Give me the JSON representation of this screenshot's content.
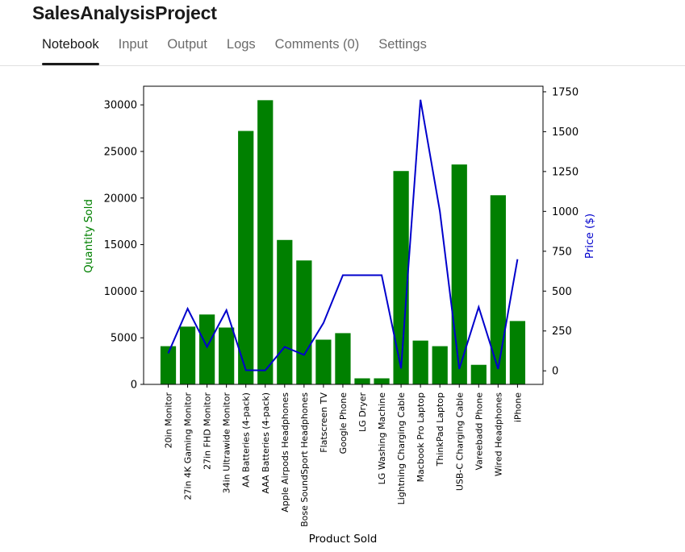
{
  "header": {
    "title": "SalesAnalysisProject",
    "tabs": [
      {
        "label": "Notebook",
        "active": true
      },
      {
        "label": "Input",
        "active": false
      },
      {
        "label": "Output",
        "active": false
      },
      {
        "label": "Logs",
        "active": false
      },
      {
        "label": "Comments (0)",
        "active": false
      },
      {
        "label": "Settings",
        "active": false
      }
    ]
  },
  "colors": {
    "bar": "#008000",
    "line": "#0000cc",
    "left_label": "#008000",
    "right_label": "#0000cc"
  },
  "chart_data": {
    "type": "bar+line",
    "title": "",
    "xlabel": "Product Sold",
    "ylabel": "Quantity Sold",
    "y2label": "Price ($)",
    "ylim": [
      0,
      32000
    ],
    "y2lim": [
      -85,
      1785
    ],
    "yticks": [
      0,
      5000,
      10000,
      15000,
      20000,
      25000,
      30000
    ],
    "y2ticks": [
      0,
      250,
      500,
      750,
      1000,
      1250,
      1500,
      1750
    ],
    "grid": false,
    "categories": [
      "20in Monitor",
      "27in 4K Gaming Monitor",
      "27in FHD Monitor",
      "34in Ultrawide Monitor",
      "AA Batteries (4-pack)",
      "AAA Batteries (4-pack)",
      "Apple Airpods Headphones",
      "Bose SoundSport Headphones",
      "Flatscreen TV",
      "Google Phone",
      "LG Dryer",
      "LG Washing Machine",
      "Lightning Charging Cable",
      "Macbook Pro Laptop",
      "ThinkPad Laptop",
      "USB-C Charging Cable",
      "Vareebadd Phone",
      "Wired Headphones",
      "iPhone"
    ],
    "series": [
      {
        "name": "Quantity Sold",
        "type": "bar",
        "axis": "left",
        "values": [
          4100,
          6200,
          7500,
          6100,
          27200,
          30500,
          15500,
          13300,
          4800,
          5500,
          650,
          650,
          22900,
          4700,
          4100,
          23600,
          2100,
          20300,
          6800
        ]
      },
      {
        "name": "Price ($)",
        "type": "line",
        "axis": "right",
        "values": [
          109.99,
          389.99,
          149.99,
          379.99,
          3.84,
          2.99,
          150,
          99.99,
          300,
          600,
          600,
          600,
          14.95,
          1700,
          999.99,
          11.95,
          400,
          11.99,
          700
        ]
      }
    ]
  }
}
